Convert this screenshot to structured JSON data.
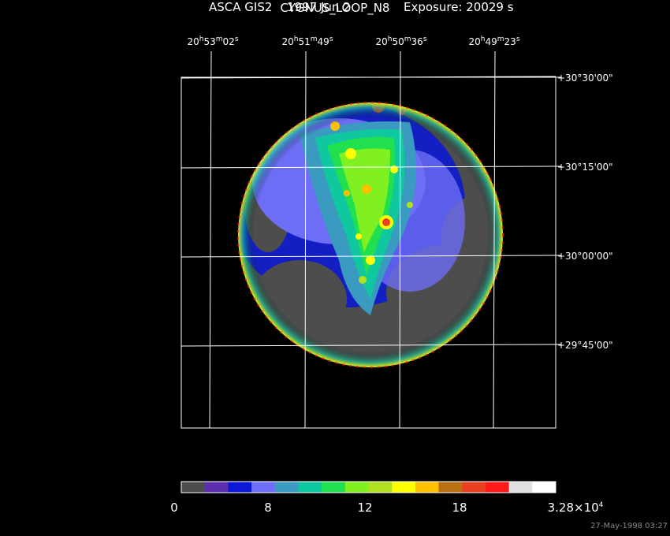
{
  "title": "CYGNUS_LOOP_N8",
  "subtitle": {
    "instrument": "ASCA GIS2",
    "date": "1997 Jun  2",
    "exposure": "Exposure: 20029 s"
  },
  "ra_labels": [
    {
      "h": "20",
      "m": "53",
      "s": "02"
    },
    {
      "h": "20",
      "m": "51",
      "s": "49"
    },
    {
      "h": "20",
      "m": "50",
      "s": "36"
    },
    {
      "h": "20",
      "m": "49",
      "s": "23"
    }
  ],
  "dec_labels": [
    "+30°30'00\"",
    "+30°15'00\"",
    "+30°00'00\"",
    "+29°45'00\""
  ],
  "colorbar": {
    "labels": [
      "0",
      "8",
      "12",
      "18",
      "3.28×10"
    ],
    "exponent": "4",
    "colors": [
      "#4d4d4d",
      "#5b2fb0",
      "#0b18d8",
      "#6d6df5",
      "#3a9ac0",
      "#10c8a0",
      "#20e050",
      "#80f020",
      "#b0e020",
      "#ffff00",
      "#ffc000",
      "#b87010",
      "#e84020",
      "#ff1a1a",
      "#e0e0e0",
      "#ffffff"
    ]
  },
  "timestamp": "27-May-1998 03:27"
}
